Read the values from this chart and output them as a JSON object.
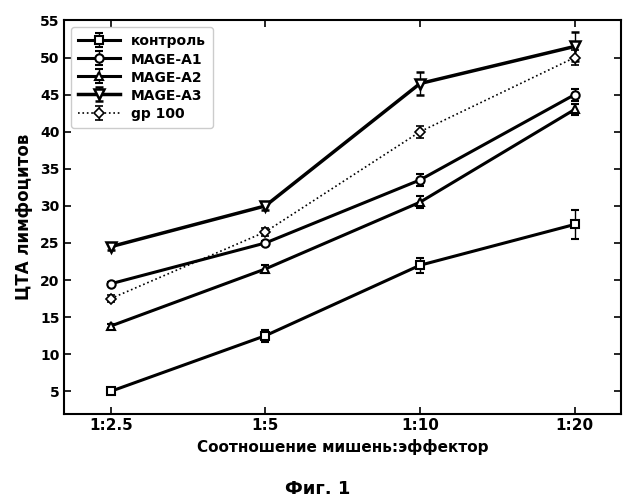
{
  "x_positions": [
    0,
    1,
    2,
    3
  ],
  "x_labels": [
    "1:2.5",
    "1:5",
    "1:10",
    "1:20"
  ],
  "series": [
    {
      "label": "контроль",
      "values": [
        5.0,
        12.5,
        22.0,
        27.5
      ],
      "yerr": [
        0.3,
        0.8,
        1.0,
        2.0
      ],
      "color": "#000000",
      "marker": "s",
      "linestyle": "-",
      "linewidth": 2.2,
      "markersize": 6,
      "markerfacecolor": "white",
      "markeredgewidth": 1.5
    },
    {
      "label": "MAGE-A1",
      "values": [
        19.5,
        25.0,
        33.5,
        45.0
      ],
      "yerr": [
        0.3,
        0.3,
        0.8,
        0.8
      ],
      "color": "#000000",
      "marker": "o",
      "linestyle": "-",
      "linewidth": 2.2,
      "markersize": 6,
      "markerfacecolor": "white",
      "markeredgewidth": 1.5
    },
    {
      "label": "MAGE-A2",
      "values": [
        13.8,
        21.5,
        30.5,
        43.0
      ],
      "yerr": [
        0.3,
        0.5,
        0.8,
        0.8
      ],
      "color": "#000000",
      "marker": "^",
      "linestyle": "-",
      "linewidth": 2.2,
      "markersize": 6,
      "markerfacecolor": "white",
      "markeredgewidth": 1.5
    },
    {
      "label": "MAGE-A3",
      "values": [
        24.5,
        30.0,
        46.5,
        51.5
      ],
      "yerr": [
        0.5,
        0.5,
        1.5,
        2.0
      ],
      "color": "#000000",
      "marker": "v",
      "linestyle": "-",
      "linewidth": 2.5,
      "markersize": 7,
      "markerfacecolor": "white",
      "markeredgewidth": 1.8
    },
    {
      "label": "gp 100",
      "values": [
        17.5,
        26.5,
        40.0,
        50.0
      ],
      "yerr": [
        0.5,
        0.5,
        0.8,
        1.0
      ],
      "color": "#000000",
      "marker": "D",
      "linestyle": ":",
      "linewidth": 1.2,
      "markersize": 5,
      "markerfacecolor": "white",
      "markeredgewidth": 1.2
    }
  ],
  "ylabel": "ЦТА лимфоцитов",
  "xlabel": "Соотношение мишень:эффектор",
  "title": "Фиг. 1",
  "ylim": [
    2,
    55
  ],
  "yticks": [
    5,
    10,
    15,
    20,
    25,
    30,
    35,
    40,
    45,
    50,
    55
  ],
  "background_color": "#ffffff"
}
